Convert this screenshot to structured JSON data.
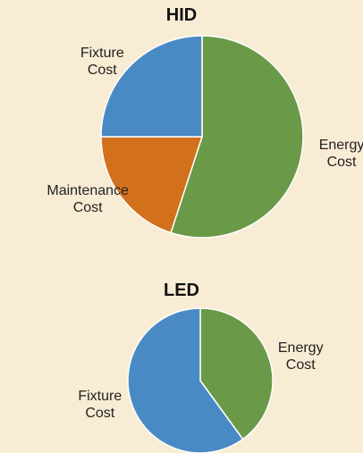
{
  "chart_data": [
    {
      "type": "pie",
      "title": "HID",
      "categories": [
        "Energy\nCost",
        "Maintenance\nCost",
        "Fixture\nCost"
      ],
      "values": [
        55,
        20,
        25
      ],
      "colors": [
        "#6a9a48",
        "#d2701c",
        "#4a8ac4"
      ]
    },
    {
      "type": "pie",
      "title": "LED",
      "categories": [
        "Energy\nCost",
        "Fixture\nCost"
      ],
      "values": [
        40,
        60
      ],
      "colors": [
        "#6a9a48",
        "#4a8ac4"
      ]
    }
  ]
}
